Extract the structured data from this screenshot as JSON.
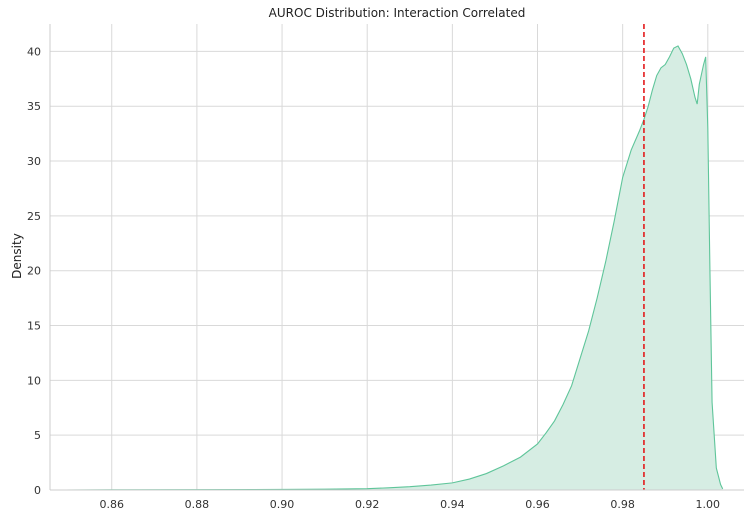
{
  "chart_data": {
    "type": "area",
    "title": "AUROC Distribution: Interaction Correlated",
    "xlabel": "",
    "ylabel": "Density",
    "xlim": [
      0.8455,
      1.0085
    ],
    "ylim": [
      0,
      42.5
    ],
    "xticks": [
      0.86,
      0.88,
      0.9,
      0.92,
      0.94,
      0.96,
      0.98,
      1.0
    ],
    "xtick_labels": [
      "0.86",
      "0.88",
      "0.90",
      "0.92",
      "0.94",
      "0.96",
      "0.98",
      "1.00"
    ],
    "yticks": [
      0,
      5,
      10,
      15,
      20,
      25,
      30,
      35,
      40
    ],
    "ytick_labels": [
      "0",
      "5",
      "10",
      "15",
      "20",
      "25",
      "30",
      "35",
      "40"
    ],
    "grid": true,
    "reference_line": {
      "x": 0.985,
      "color": "#e31a1c",
      "style": "dashed"
    },
    "series": [
      {
        "color": "#5fc59a",
        "fill": "#d6ede3",
        "x": [
          0.849,
          0.86,
          0.88,
          0.9,
          0.91,
          0.92,
          0.925,
          0.93,
          0.935,
          0.94,
          0.944,
          0.948,
          0.952,
          0.956,
          0.96,
          0.962,
          0.964,
          0.966,
          0.968,
          0.97,
          0.972,
          0.974,
          0.976,
          0.978,
          0.98,
          0.982,
          0.984,
          0.985,
          0.986,
          0.987,
          0.988,
          0.989,
          0.99,
          0.991,
          0.992,
          0.993,
          0.994,
          0.995,
          0.996,
          0.997,
          0.9975,
          0.998,
          0.999,
          0.9995,
          1.0,
          1.0005,
          1.001,
          1.002,
          1.003,
          1.0035
        ],
        "y": [
          0.0,
          0.02,
          0.03,
          0.05,
          0.07,
          0.12,
          0.2,
          0.3,
          0.45,
          0.65,
          1.0,
          1.5,
          2.2,
          3.0,
          4.2,
          5.2,
          6.3,
          7.8,
          9.5,
          12.0,
          14.5,
          17.5,
          20.8,
          24.5,
          28.5,
          31.0,
          32.8,
          33.8,
          35.0,
          36.5,
          37.8,
          38.5,
          38.8,
          39.5,
          40.3,
          40.5,
          39.8,
          38.8,
          37.5,
          35.8,
          35.2,
          37.0,
          38.8,
          39.5,
          33.0,
          20.0,
          8.0,
          2.0,
          0.5,
          0.1
        ]
      }
    ]
  }
}
